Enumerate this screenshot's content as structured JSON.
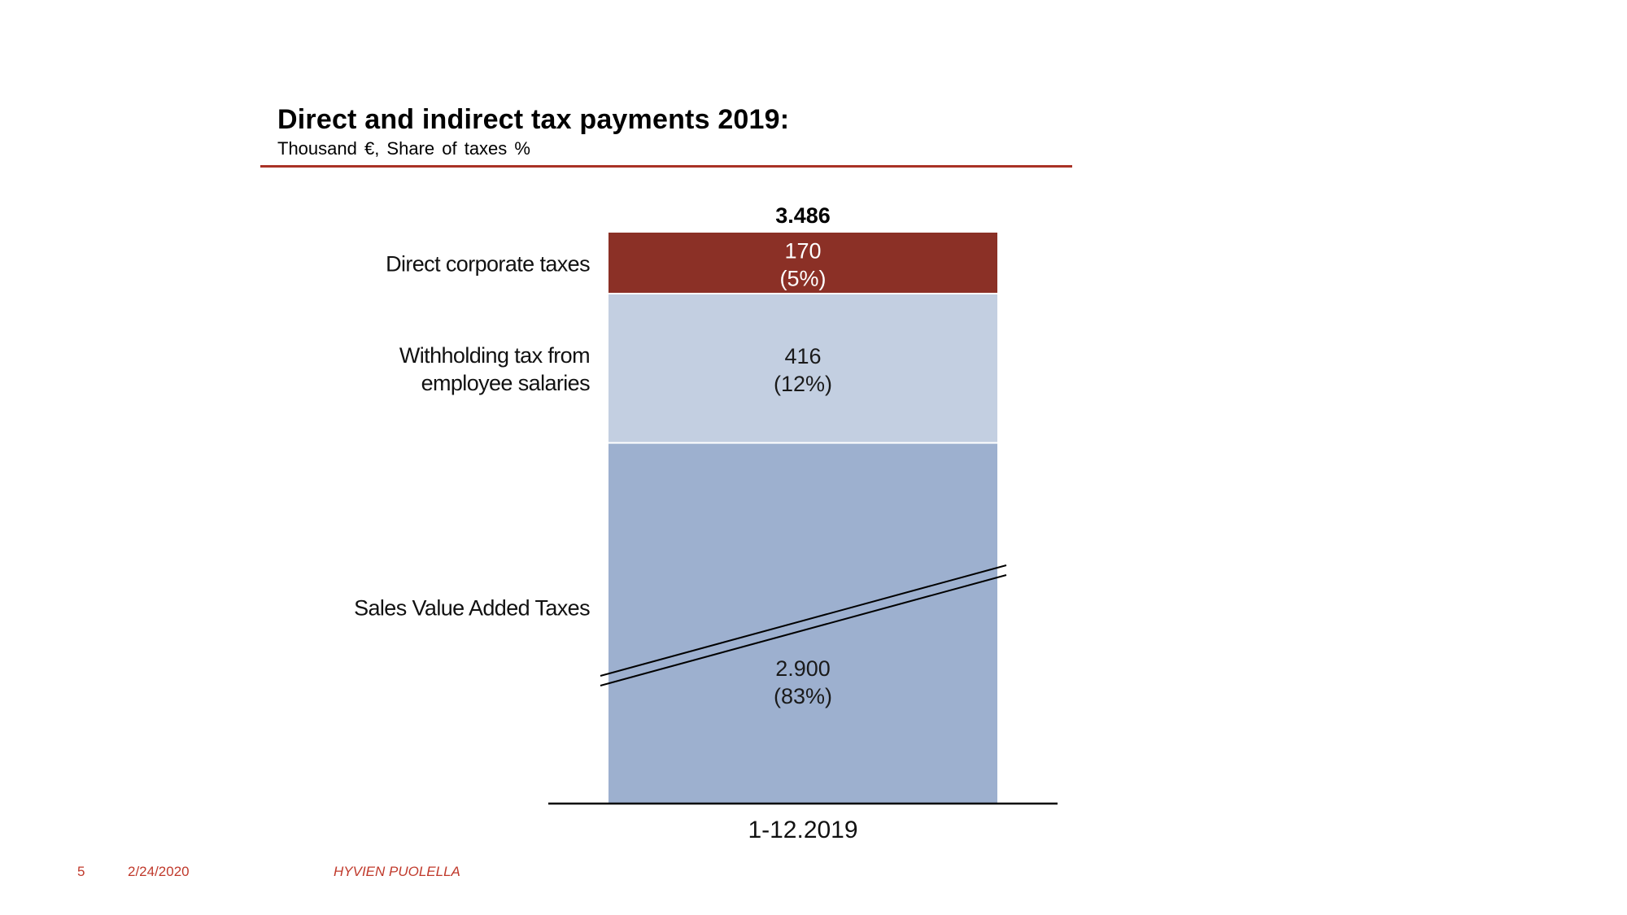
{
  "header": {
    "title": "Direct and indirect tax payments 2019:",
    "subtitle": "Thousand €, Share of taxes %"
  },
  "footer": {
    "page_number": "5",
    "date": "2/24/2020",
    "slogan": "HYVIEN PUOLELLA"
  },
  "colors": {
    "accent_red": "#a93226",
    "footer_red": "#c0392b"
  },
  "chart_data": {
    "type": "bar",
    "stacked": true,
    "broken_axis": true,
    "categories": [
      "1-12.2019"
    ],
    "total_label": "3.486",
    "total": 3486,
    "series": [
      {
        "name": "Sales Value Added Taxes",
        "values": [
          2900
        ],
        "value_label": "2.900",
        "share_label": "(83%)",
        "color": "#9db0cf",
        "text_color": "#1a1a1a"
      },
      {
        "name": "Withholding tax from employee salaries",
        "name_lines": [
          "Withholding tax from",
          "employee salaries"
        ],
        "values": [
          416
        ],
        "value_label": "416",
        "share_label": "(12%)",
        "color": "#c3cfe1",
        "text_color": "#1a1a1a"
      },
      {
        "name": "Direct corporate taxes",
        "values": [
          170
        ],
        "value_label": "170",
        "share_label": "(5%)",
        "color": "#8b3026",
        "text_color": "#ffffff"
      }
    ],
    "legend": "left"
  }
}
